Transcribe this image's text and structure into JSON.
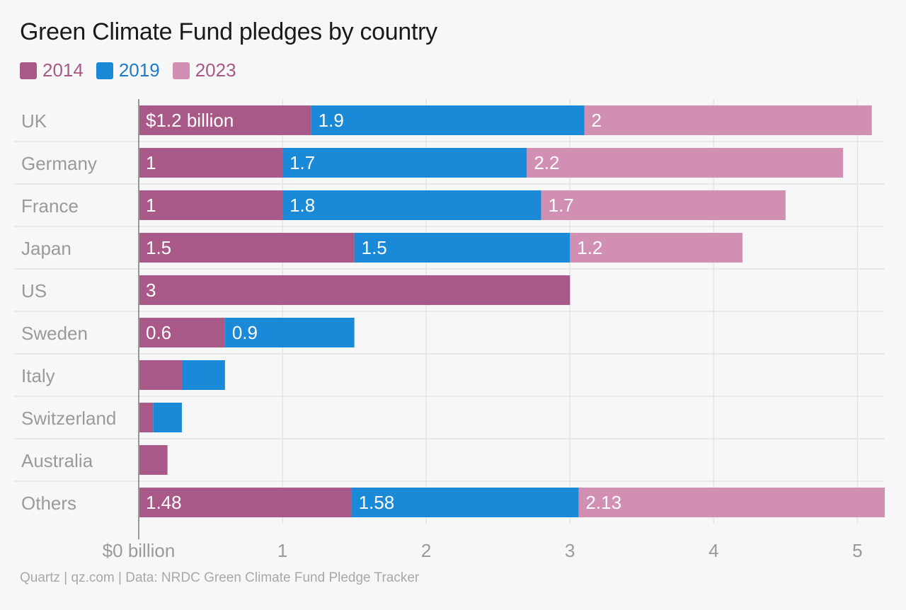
{
  "title": "Green Climate Fund pledges by country",
  "source": "Quartz | qz.com | Data: NRDC Green Climate Fund Pledge Tracker",
  "colors": {
    "s2014": "#a85987",
    "s2019": "#1a8ad8",
    "s2023": "#d18fb4",
    "legend2014_text": "#a85987",
    "legend2019_text": "#1a7ccc",
    "legend2023_text": "#a85987",
    "grid": "#e4e4e4",
    "axis": "#999999",
    "label": "#9a9a9a"
  },
  "chart_data": {
    "type": "bar",
    "orientation": "horizontal",
    "stacked": true,
    "title": "Green Climate Fund pledges by country",
    "categories": [
      "UK",
      "Germany",
      "France",
      "Japan",
      "US",
      "Sweden",
      "Italy",
      "Switzerland",
      "Australia",
      "Others"
    ],
    "series": [
      {
        "name": "2014",
        "values": [
          1.2,
          1,
          1,
          1.5,
          3,
          0.6,
          0.3,
          0.1,
          0.2,
          1.48
        ]
      },
      {
        "name": "2019",
        "values": [
          1.9,
          1.7,
          1.8,
          1.5,
          0,
          0.9,
          0.3,
          0.2,
          0,
          1.58
        ]
      },
      {
        "name": "2023",
        "values": [
          2,
          2.2,
          1.7,
          1.2,
          0,
          0,
          0,
          0,
          0,
          2.13
        ]
      }
    ],
    "data_labels": [
      [
        "$1.2 billion",
        "1.9",
        "2"
      ],
      [
        "1",
        "1.7",
        "2.2"
      ],
      [
        "1",
        "1.8",
        "1.7"
      ],
      [
        "1.5",
        "1.5",
        "1.2"
      ],
      [
        "3",
        "",
        ""
      ],
      [
        "0.6",
        "0.9",
        ""
      ],
      [
        "",
        "",
        ""
      ],
      [
        "",
        "",
        ""
      ],
      [
        "",
        "",
        ""
      ],
      [
        "1.48",
        "1.58",
        "2.13"
      ]
    ],
    "x_ticks": [
      {
        "value": 0,
        "label": "$0 billion"
      },
      {
        "value": 1,
        "label": "1"
      },
      {
        "value": 2,
        "label": "2"
      },
      {
        "value": 3,
        "label": "3"
      },
      {
        "value": 4,
        "label": "4"
      },
      {
        "value": 5,
        "label": "5"
      }
    ],
    "xlim": [
      0,
      5.19
    ],
    "grid": true,
    "legend_position": "top-left"
  }
}
